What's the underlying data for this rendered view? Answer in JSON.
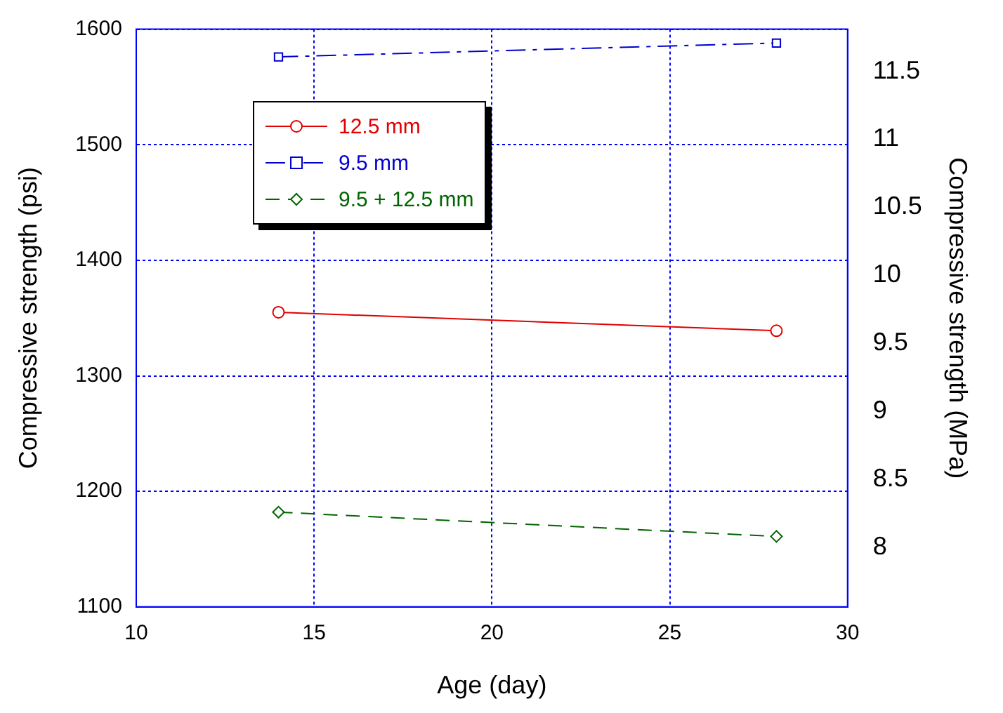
{
  "chart_data": {
    "type": "line",
    "xlabel": "Age (day)",
    "ylabel": "Compressive strength (psi)",
    "y2label": "Compressive strength (MPa)",
    "xlim": [
      10,
      30
    ],
    "xticks": [
      10,
      15,
      20,
      25,
      30
    ],
    "ylim": [
      1100,
      1600
    ],
    "yticks": [
      1100,
      1200,
      1300,
      1400,
      1500,
      1600
    ],
    "y2lim": [
      7.56,
      11.81
    ],
    "y2ticks": [
      8,
      8.5,
      9,
      9.5,
      10,
      10.5,
      11,
      11.5
    ],
    "grid": true,
    "legend": "top left",
    "x": [
      14,
      28
    ],
    "series": [
      {
        "name": "12.5 mm",
        "color": "#e00000",
        "values": [
          1355,
          1339
        ],
        "marker": "circle",
        "line_style": "solid"
      },
      {
        "name": "9.5 mm",
        "color": "#0000d0",
        "values": [
          1576,
          1588
        ],
        "marker": "square",
        "line_style": "dashdot"
      },
      {
        "name": "9.5 + 12.5 mm",
        "color": "#006400",
        "values": [
          1182,
          1161
        ],
        "marker": "diamond",
        "line_style": "dashed"
      }
    ]
  }
}
